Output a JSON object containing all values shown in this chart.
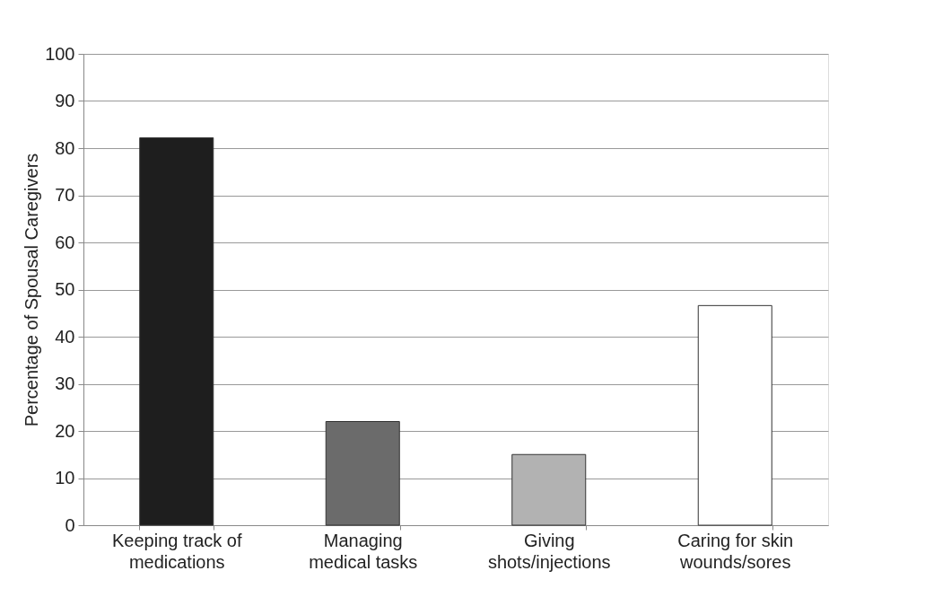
{
  "chart_data": {
    "type": "bar",
    "ylabel": "Percentage of Spousal Caregivers",
    "categories": [
      "Keeping track of\nmedications",
      "Managing\nmedical tasks",
      "Giving\nshots/injections",
      "Caring for skin\nwounds/sores"
    ],
    "values": [
      82.2,
      22,
      15,
      46.6
    ],
    "colors": [
      "#1e1e1e",
      "#6b6b6b",
      "#b2b2b2",
      "#ffffff"
    ],
    "ylim": [
      0,
      100
    ],
    "yticks": [
      0,
      10,
      20,
      30,
      40,
      50,
      60,
      70,
      80,
      90,
      100
    ],
    "grid": "y"
  }
}
